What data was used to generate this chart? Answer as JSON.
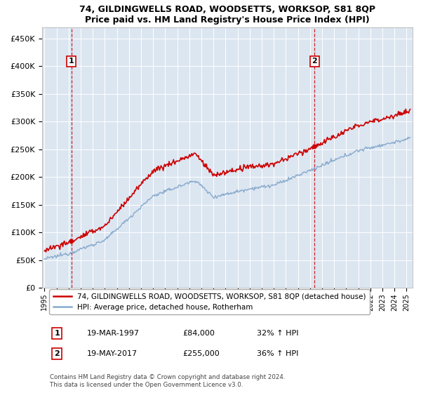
{
  "title": "74, GILDINGWELLS ROAD, WOODSETTS, WORKSOP, S81 8QP",
  "subtitle": "Price paid vs. HM Land Registry's House Price Index (HPI)",
  "ylabel_ticks": [
    "£0",
    "£50K",
    "£100K",
    "£150K",
    "£200K",
    "£250K",
    "£300K",
    "£350K",
    "£400K",
    "£450K"
  ],
  "ytick_vals": [
    0,
    50000,
    100000,
    150000,
    200000,
    250000,
    300000,
    350000,
    400000,
    450000
  ],
  "ylim": [
    0,
    470000
  ],
  "xlim_start": 1994.8,
  "xlim_end": 2025.5,
  "sale1_x": 1997.22,
  "sale1_y": 84000,
  "sale2_x": 2017.38,
  "sale2_y": 255000,
  "property_color": "#cc0000",
  "hpi_color": "#88aacc",
  "plot_bg_color": "#dce6f1",
  "legend_property": "74, GILDINGWELLS ROAD, WOODSETTS, WORKSOP, S81 8QP (detached house)",
  "legend_hpi": "HPI: Average price, detached house, Rotherham",
  "note1_date": "19-MAR-1997",
  "note1_price": "£84,000",
  "note1_hpi": "32% ↑ HPI",
  "note2_date": "19-MAY-2017",
  "note2_price": "£255,000",
  "note2_hpi": "36% ↑ HPI",
  "footer": "Contains HM Land Registry data © Crown copyright and database right 2024.\nThis data is licensed under the Open Government Licence v3.0."
}
